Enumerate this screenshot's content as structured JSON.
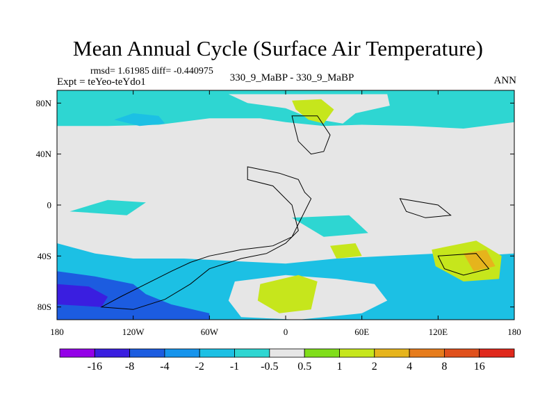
{
  "chart_data": {
    "type": "heatmap",
    "title": "Mean Annual Cycle (Surface Air Temperature)",
    "stats_line": "rmsd= 1.61985 diff= -0.440975",
    "left_label": "Expt = teYeo-teYdo1",
    "center_label": "330_9_MaBP - 330_9_MaBP",
    "right_label": "ANN",
    "x_axis": {
      "range": [
        -180,
        180
      ],
      "ticks": [
        {
          "value": -180,
          "label": "180"
        },
        {
          "value": -120,
          "label": "120W"
        },
        {
          "value": -60,
          "label": "60W"
        },
        {
          "value": 0,
          "label": "0"
        },
        {
          "value": 60,
          "label": "60E"
        },
        {
          "value": 120,
          "label": "120E"
        },
        {
          "value": 180,
          "label": "180"
        }
      ]
    },
    "y_axis": {
      "range": [
        -90,
        90
      ],
      "ticks": [
        {
          "value": 80,
          "label": "80N"
        },
        {
          "value": 40,
          "label": "40N"
        },
        {
          "value": 0,
          "label": "0"
        },
        {
          "value": -40,
          "label": "40S"
        },
        {
          "value": -80,
          "label": "80S"
        }
      ]
    },
    "colorbar": {
      "labels": [
        "-16",
        "-8",
        "-4",
        "-2",
        "-1",
        "-0.5",
        "0.5",
        "1",
        "2",
        "4",
        "8",
        "16"
      ],
      "colors": [
        "#9400e8",
        "#3a1ee0",
        "#1c5ce0",
        "#1694ec",
        "#1cc0e4",
        "#2ed6d2",
        "#e6e6e6",
        "#80de1a",
        "#c6e61c",
        "#e6b41c",
        "#e67c1c",
        "#e0501c",
        "#e0281c"
      ]
    },
    "regions": [
      {
        "name": "north-band",
        "value": -0.75,
        "points": [
          [
            -180,
            90
          ],
          [
            180,
            90
          ],
          [
            180,
            65
          ],
          [
            140,
            60
          ],
          [
            100,
            62
          ],
          [
            60,
            63
          ],
          [
            30,
            62
          ],
          [
            0,
            65
          ],
          [
            -20,
            68
          ],
          [
            -60,
            68
          ],
          [
            -100,
            63
          ],
          [
            -140,
            62
          ],
          [
            -180,
            62
          ]
        ]
      },
      {
        "name": "north-gray-cap",
        "value": 0,
        "points": [
          [
            -45,
            87
          ],
          [
            80,
            87
          ],
          [
            82,
            78
          ],
          [
            55,
            72
          ],
          [
            45,
            64
          ],
          [
            20,
            68
          ],
          [
            0,
            76
          ],
          [
            -30,
            80
          ]
        ]
      },
      {
        "name": "north-green-greenland",
        "value": 1.5,
        "points": [
          [
            5,
            82
          ],
          [
            28,
            83
          ],
          [
            38,
            75
          ],
          [
            30,
            64
          ],
          [
            18,
            67
          ],
          [
            8,
            75
          ]
        ]
      },
      {
        "name": "north-blue-patch",
        "value": -1.5,
        "points": [
          [
            -120,
            72
          ],
          [
            -100,
            70
          ],
          [
            -95,
            64
          ],
          [
            -115,
            62
          ],
          [
            -135,
            67
          ]
        ]
      },
      {
        "name": "south-band",
        "value": -1.5,
        "points": [
          [
            -180,
            -30
          ],
          [
            -150,
            -38
          ],
          [
            -120,
            -42
          ],
          [
            -80,
            -42
          ],
          [
            -40,
            -44
          ],
          [
            0,
            -46
          ],
          [
            40,
            -42
          ],
          [
            80,
            -40
          ],
          [
            120,
            -38
          ],
          [
            150,
            -40
          ],
          [
            180,
            -38
          ],
          [
            180,
            -90
          ],
          [
            -180,
            -90
          ]
        ]
      },
      {
        "name": "south-dark",
        "value": -6,
        "points": [
          [
            -180,
            -52
          ],
          [
            -150,
            -56
          ],
          [
            -120,
            -62
          ],
          [
            -110,
            -70
          ],
          [
            -90,
            -78
          ],
          [
            -60,
            -85
          ],
          [
            -60,
            -90
          ],
          [
            -180,
            -90
          ]
        ]
      },
      {
        "name": "south-darkest",
        "value": -10,
        "points": [
          [
            -180,
            -62
          ],
          [
            -155,
            -64
          ],
          [
            -140,
            -72
          ],
          [
            -145,
            -80
          ],
          [
            -180,
            -78
          ]
        ]
      },
      {
        "name": "south-gray",
        "value": 0,
        "points": [
          [
            -40,
            -60
          ],
          [
            0,
            -55
          ],
          [
            40,
            -58
          ],
          [
            70,
            -62
          ],
          [
            80,
            -75
          ],
          [
            60,
            -85
          ],
          [
            10,
            -90
          ],
          [
            -35,
            -88
          ],
          [
            -45,
            -75
          ]
        ]
      },
      {
        "name": "south-green",
        "value": 1.5,
        "points": [
          [
            -20,
            -62
          ],
          [
            10,
            -55
          ],
          [
            25,
            -60
          ],
          [
            20,
            -82
          ],
          [
            -5,
            -85
          ],
          [
            -22,
            -75
          ]
        ]
      },
      {
        "name": "south-east-green",
        "value": 1.5,
        "points": [
          [
            115,
            -35
          ],
          [
            150,
            -28
          ],
          [
            170,
            -40
          ],
          [
            168,
            -58
          ],
          [
            140,
            -60
          ],
          [
            118,
            -48
          ]
        ]
      },
      {
        "name": "south-east-orange",
        "value": 3,
        "points": [
          [
            140,
            -38
          ],
          [
            158,
            -35
          ],
          [
            165,
            -48
          ],
          [
            148,
            -52
          ]
        ]
      },
      {
        "name": "tropical-cyan-west",
        "value": -0.75,
        "points": [
          [
            -170,
            -5
          ],
          [
            -140,
            4
          ],
          [
            -110,
            2
          ],
          [
            -125,
            -8
          ]
        ]
      },
      {
        "name": "tropical-cyan-east",
        "value": -0.75,
        "points": [
          [
            5,
            -10
          ],
          [
            50,
            -8
          ],
          [
            65,
            -22
          ],
          [
            30,
            -25
          ]
        ]
      },
      {
        "name": "mid-green-africa",
        "value": 1.5,
        "points": [
          [
            35,
            -32
          ],
          [
            55,
            -30
          ],
          [
            60,
            -40
          ],
          [
            40,
            -42
          ]
        ]
      }
    ],
    "coastlines": [
      {
        "name": "main-continent-outline",
        "points": [
          [
            -30,
            30
          ],
          [
            -20,
            28
          ],
          [
            -5,
            25
          ],
          [
            10,
            20
          ],
          [
            15,
            10
          ],
          [
            20,
            5
          ],
          [
            10,
            -15
          ],
          [
            5,
            -25
          ],
          [
            -10,
            -32
          ],
          [
            -35,
            -35
          ],
          [
            -60,
            -40
          ],
          [
            -75,
            -45
          ],
          [
            -90,
            -52
          ],
          [
            -110,
            -62
          ],
          [
            -130,
            -72
          ],
          [
            -145,
            -80
          ],
          [
            -120,
            -82
          ],
          [
            -95,
            -74
          ],
          [
            -75,
            -62
          ],
          [
            -60,
            -50
          ],
          [
            -35,
            -42
          ],
          [
            -15,
            -38
          ],
          [
            0,
            -30
          ],
          [
            10,
            -20
          ],
          [
            5,
            0
          ],
          [
            -10,
            15
          ],
          [
            -30,
            20
          ]
        ]
      },
      {
        "name": "north-continent-outline",
        "points": [
          [
            5,
            70
          ],
          [
            25,
            70
          ],
          [
            35,
            55
          ],
          [
            30,
            42
          ],
          [
            20,
            40
          ],
          [
            10,
            50
          ]
        ]
      },
      {
        "name": "east-island-outline",
        "points": [
          [
            90,
            5
          ],
          [
            120,
            0
          ],
          [
            130,
            -8
          ],
          [
            110,
            -10
          ],
          [
            95,
            -5
          ]
        ]
      },
      {
        "name": "southeast-outline",
        "points": [
          [
            120,
            -40
          ],
          [
            150,
            -38
          ],
          [
            160,
            -50
          ],
          [
            140,
            -55
          ],
          [
            125,
            -50
          ]
        ]
      }
    ]
  }
}
